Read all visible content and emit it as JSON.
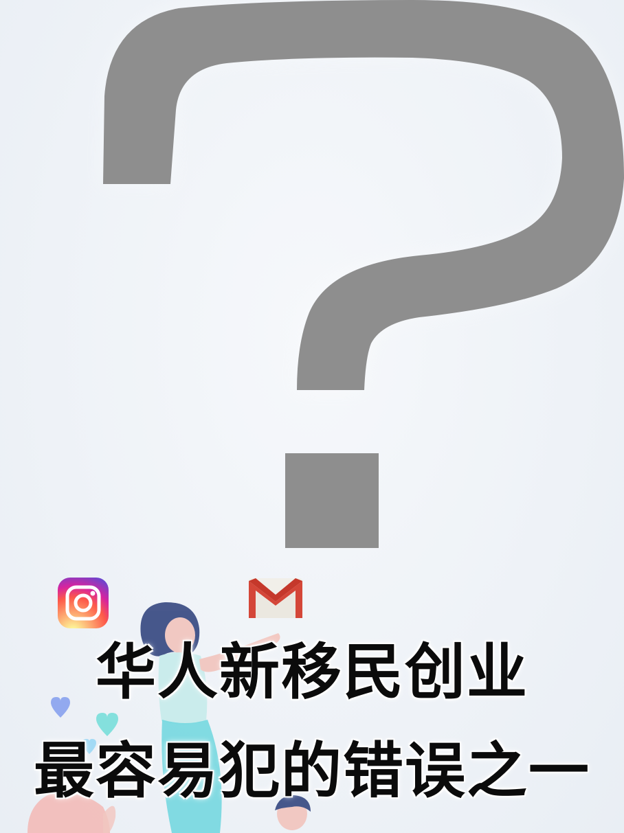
{
  "headline": {
    "line1": "华人新移民创业",
    "line2": "最容易犯的错误之一"
  },
  "icons": {
    "question_mark": "question-mark-icon",
    "instagram": "instagram-icon",
    "gmail": "gmail-icon"
  },
  "colors": {
    "question_mark": "#8e8e8e",
    "background": "#eef2f7",
    "headline_text": "#0b0b0b",
    "instagram_gradient": [
      "#feda75",
      "#fa7e1e",
      "#d62976",
      "#962fbf",
      "#4f5bd5"
    ],
    "gmail_red": "#d44638"
  }
}
